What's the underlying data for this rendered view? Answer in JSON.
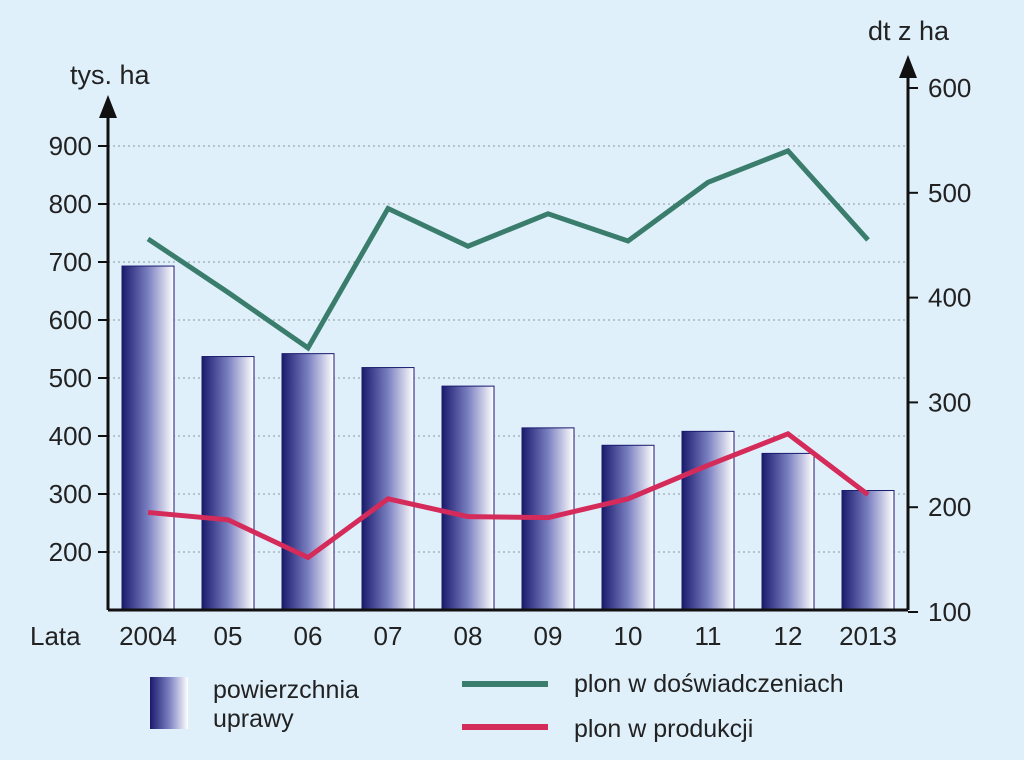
{
  "chart_data": {
    "type": "bar+line",
    "x_title": "Lata",
    "categories": [
      "2004",
      "05",
      "06",
      "07",
      "08",
      "09",
      "10",
      "11",
      "12",
      "2013"
    ],
    "left_axis": {
      "unit": "tys. ha",
      "ticks": [
        200,
        300,
        400,
        500,
        600,
        700,
        800,
        900
      ],
      "range": [
        100,
        950
      ]
    },
    "right_axis": {
      "unit": "dt z ha",
      "ticks": [
        100,
        200,
        300,
        400,
        500,
        600
      ],
      "range": [
        100,
        600
      ]
    },
    "series": [
      {
        "name": "powierzchnia uprawy",
        "kind": "bar",
        "axis": "left",
        "values": [
          693,
          537,
          542,
          518,
          486,
          414,
          384,
          408,
          370,
          306
        ]
      },
      {
        "name": "plon w doświadczeniach",
        "kind": "line",
        "axis": "right",
        "color": "#3a7d6c",
        "values": [
          456,
          405,
          352,
          485,
          449,
          480,
          454,
          510,
          540,
          455
        ]
      },
      {
        "name": "plon w produkcji",
        "kind": "line",
        "axis": "right",
        "color": "#d42b5a",
        "values": [
          195,
          188,
          152,
          208,
          191,
          190,
          208,
          240,
          270,
          212
        ]
      }
    ],
    "legend": [
      {
        "label_line1": "powierzchnia",
        "label_line2": "uprawy"
      },
      {
        "label": "plon w doświadczeniach"
      },
      {
        "label": "plon w produkcji"
      }
    ]
  }
}
